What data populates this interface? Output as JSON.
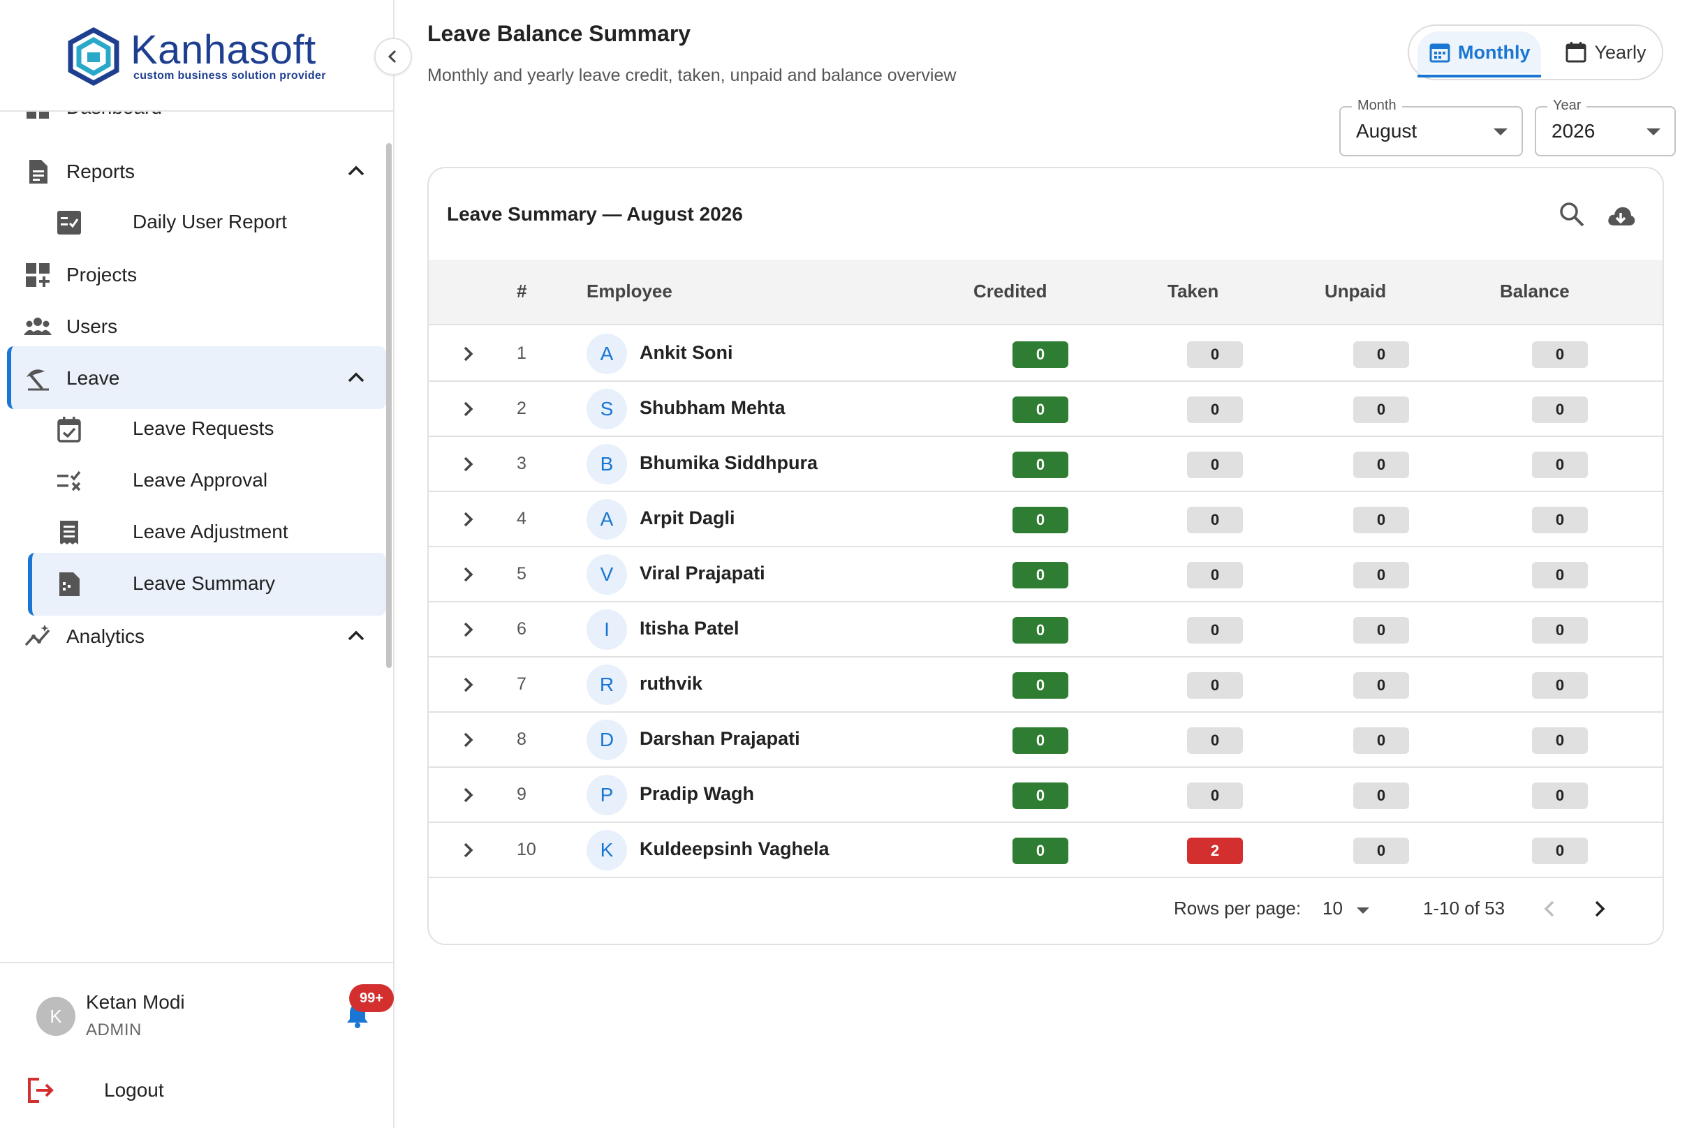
{
  "brand": {
    "name": "Kanhasoft",
    "tagline": "custom business solution provider"
  },
  "sidebar": {
    "partial_item": "Dashboard",
    "items": [
      {
        "label": "Reports",
        "icon": "document-icon",
        "expanded": true
      },
      {
        "label": "Daily User Report",
        "icon": "checklist-icon",
        "sub": true
      },
      {
        "label": "Projects",
        "icon": "dashboard-add-icon"
      },
      {
        "label": "Users",
        "icon": "group-icon"
      },
      {
        "label": "Leave",
        "icon": "beach-umbrella-icon",
        "expanded": true,
        "active": true
      },
      {
        "label": "Leave Requests",
        "icon": "calendar-check-icon",
        "sub": true
      },
      {
        "label": "Leave Approval",
        "icon": "rule-icon",
        "sub": true
      },
      {
        "label": "Leave Adjustment",
        "icon": "receipt-icon",
        "sub": true
      },
      {
        "label": "Leave Summary",
        "icon": "summary-doc-icon",
        "sub": true,
        "active": true
      },
      {
        "label": "Analytics",
        "icon": "insights-icon",
        "expanded": true
      }
    ]
  },
  "user": {
    "initial": "K",
    "name": "Ketan Modi",
    "role": "ADMIN",
    "notifications": "99+"
  },
  "logout_label": "Logout",
  "header": {
    "title": "Leave Balance Summary",
    "subtitle": "Monthly and yearly leave credit, taken, unpaid and balance overview"
  },
  "view_toggle": {
    "monthly": "Monthly",
    "yearly": "Yearly",
    "selected": "Monthly"
  },
  "filters": {
    "month_label": "Month",
    "month_value": "August",
    "year_label": "Year",
    "year_value": "2026"
  },
  "table": {
    "title": "Leave Summary — August 2026",
    "columns": [
      "#",
      "Employee",
      "Credited",
      "Taken",
      "Unpaid",
      "Balance"
    ],
    "rows": [
      {
        "n": "1",
        "initial": "A",
        "name": "Ankit Soni",
        "credited": "0",
        "taken": "0",
        "unpaid": "0",
        "balance": "0"
      },
      {
        "n": "2",
        "initial": "S",
        "name": "Shubham Mehta",
        "credited": "0",
        "taken": "0",
        "unpaid": "0",
        "balance": "0"
      },
      {
        "n": "3",
        "initial": "B",
        "name": "Bhumika Siddhpura",
        "credited": "0",
        "taken": "0",
        "unpaid": "0",
        "balance": "0"
      },
      {
        "n": "4",
        "initial": "A",
        "name": "Arpit Dagli",
        "credited": "0",
        "taken": "0",
        "unpaid": "0",
        "balance": "0"
      },
      {
        "n": "5",
        "initial": "V",
        "name": "Viral Prajapati",
        "credited": "0",
        "taken": "0",
        "unpaid": "0",
        "balance": "0"
      },
      {
        "n": "6",
        "initial": "I",
        "name": "Itisha Patel",
        "credited": "0",
        "taken": "0",
        "unpaid": "0",
        "balance": "0"
      },
      {
        "n": "7",
        "initial": "R",
        "name": "ruthvik",
        "credited": "0",
        "taken": "0",
        "unpaid": "0",
        "balance": "0"
      },
      {
        "n": "8",
        "initial": "D",
        "name": "Darshan Prajapati",
        "credited": "0",
        "taken": "0",
        "unpaid": "0",
        "balance": "0"
      },
      {
        "n": "9",
        "initial": "P",
        "name": "Pradip Wagh",
        "credited": "0",
        "taken": "0",
        "unpaid": "0",
        "balance": "0"
      },
      {
        "n": "10",
        "initial": "K",
        "name": "Kuldeepsinh Vaghela",
        "credited": "0",
        "taken": "2",
        "unpaid": "0",
        "balance": "0"
      }
    ]
  },
  "pagination": {
    "rows_per_page_label": "Rows per page:",
    "rows_per_page": "10",
    "range": "1-10 of 53"
  },
  "colors": {
    "accent": "#1976d2",
    "credited": "#2e7d32",
    "taken_positive": "#d32f2f",
    "neutral_chip": "#e0e0e0",
    "brand": "#1e3f8f"
  }
}
